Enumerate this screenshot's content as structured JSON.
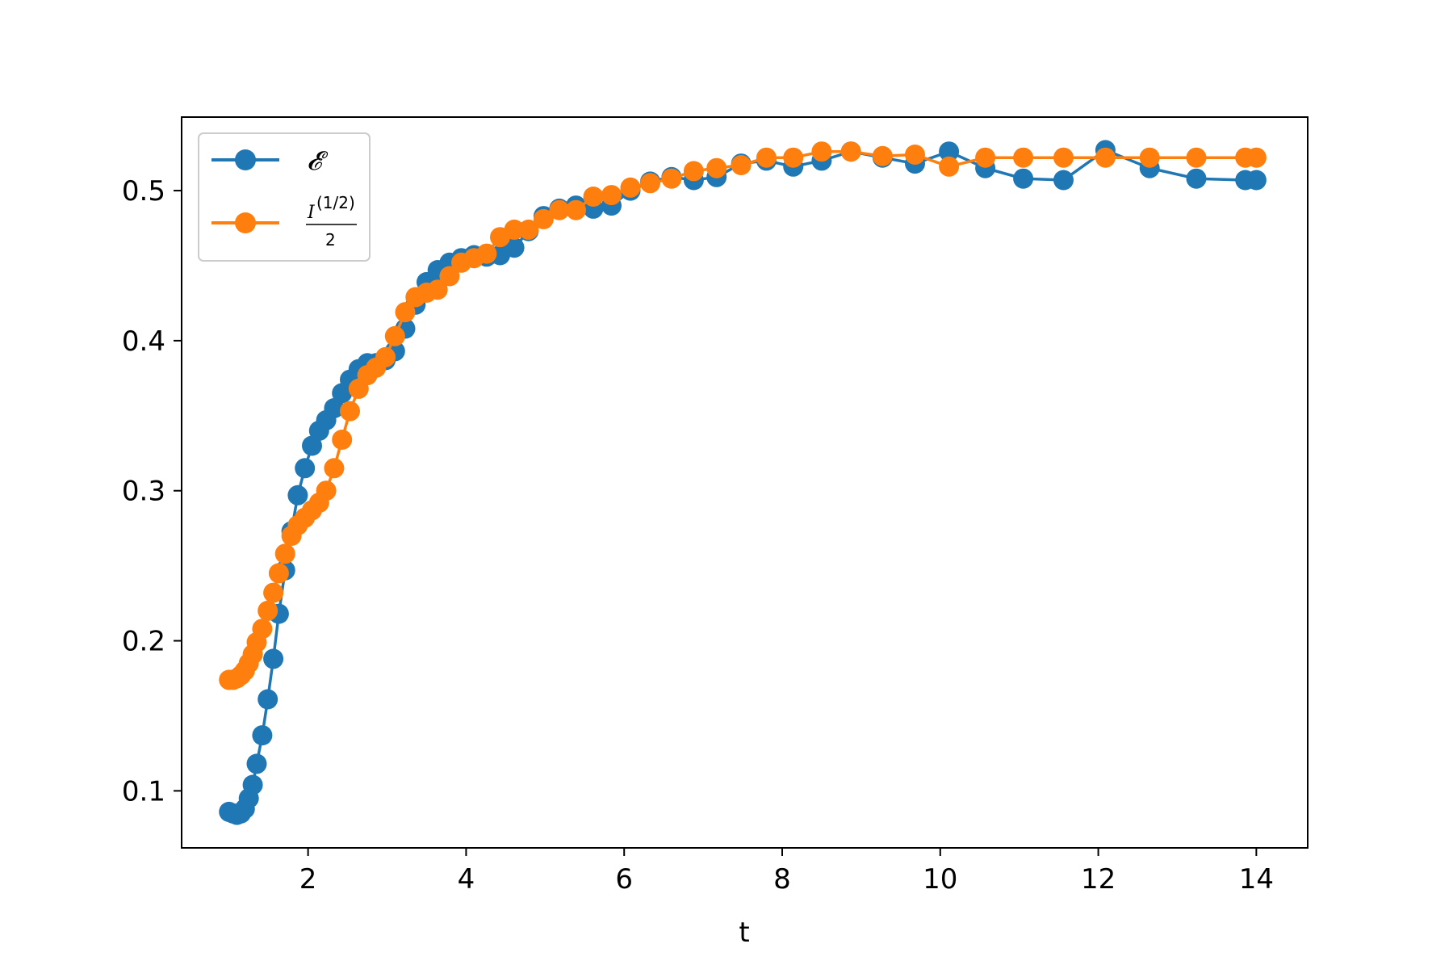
{
  "chart_data": {
    "type": "line",
    "title": "",
    "xlabel": "t",
    "ylabel": "",
    "xlim": [
      0.4,
      14.65
    ],
    "ylim": [
      0.062,
      0.549
    ],
    "xticks": [
      2,
      4,
      6,
      8,
      10,
      12,
      14
    ],
    "xtick_labels": [
      "2",
      "4",
      "6",
      "8",
      "10",
      "12",
      "14"
    ],
    "yticks": [
      0.1,
      0.2,
      0.3,
      0.4,
      0.5
    ],
    "ytick_labels": [
      "0.1",
      "0.2",
      "0.3",
      "0.4",
      "0.5"
    ],
    "grid": false,
    "legend_position": "top-left",
    "series": [
      {
        "name": "𝓔",
        "color": "#1f77b4",
        "marker": "circle",
        "x": [
          1.0,
          1.05,
          1.1,
          1.15,
          1.2,
          1.25,
          1.3,
          1.35,
          1.42,
          1.49,
          1.56,
          1.63,
          1.71,
          1.79,
          1.87,
          1.96,
          2.05,
          2.14,
          2.23,
          2.33,
          2.43,
          2.53,
          2.64,
          2.75,
          2.86,
          2.98,
          3.1,
          3.23,
          3.36,
          3.5,
          3.64,
          3.79,
          3.94,
          4.1,
          4.26,
          4.43,
          4.61,
          4.79,
          4.98,
          5.18,
          5.39,
          5.61,
          5.84,
          6.08,
          6.33,
          6.6,
          6.88,
          7.17,
          7.48,
          7.8,
          8.14,
          8.5,
          8.87,
          9.27,
          9.68,
          10.11,
          10.57,
          11.05,
          11.56,
          12.09,
          12.65,
          13.24,
          13.86,
          14.0
        ],
        "y": [
          0.086,
          0.085,
          0.084,
          0.085,
          0.088,
          0.095,
          0.104,
          0.118,
          0.137,
          0.161,
          0.188,
          0.218,
          0.247,
          0.273,
          0.297,
          0.315,
          0.33,
          0.34,
          0.347,
          0.355,
          0.365,
          0.374,
          0.381,
          0.385,
          0.385,
          0.387,
          0.393,
          0.408,
          0.424,
          0.439,
          0.447,
          0.452,
          0.455,
          0.457,
          0.456,
          0.457,
          0.462,
          0.473,
          0.483,
          0.488,
          0.49,
          0.488,
          0.49,
          0.5,
          0.506,
          0.509,
          0.507,
          0.509,
          0.518,
          0.52,
          0.516,
          0.52,
          0.526,
          0.522,
          0.518,
          0.526,
          0.515,
          0.508,
          0.507,
          0.527,
          0.515,
          0.508,
          0.507,
          0.507
        ]
      },
      {
        "name": "I^(1/2) / 2",
        "color": "#ff7f0e",
        "marker": "circle",
        "x": [
          1.0,
          1.05,
          1.1,
          1.15,
          1.2,
          1.25,
          1.3,
          1.35,
          1.42,
          1.49,
          1.56,
          1.63,
          1.71,
          1.79,
          1.87,
          1.96,
          2.05,
          2.14,
          2.23,
          2.33,
          2.43,
          2.53,
          2.64,
          2.75,
          2.86,
          2.98,
          3.1,
          3.23,
          3.36,
          3.5,
          3.64,
          3.79,
          3.94,
          4.1,
          4.26,
          4.43,
          4.61,
          4.79,
          4.98,
          5.18,
          5.39,
          5.61,
          5.84,
          6.08,
          6.33,
          6.6,
          6.88,
          7.17,
          7.48,
          7.8,
          8.14,
          8.5,
          8.87,
          9.27,
          9.68,
          10.11,
          10.57,
          11.05,
          11.56,
          12.09,
          12.65,
          13.24,
          13.86,
          14.0
        ],
        "y": [
          0.174,
          0.174,
          0.175,
          0.177,
          0.18,
          0.185,
          0.191,
          0.199,
          0.208,
          0.22,
          0.232,
          0.245,
          0.258,
          0.27,
          0.277,
          0.282,
          0.287,
          0.292,
          0.3,
          0.315,
          0.334,
          0.353,
          0.368,
          0.377,
          0.382,
          0.389,
          0.403,
          0.419,
          0.429,
          0.432,
          0.434,
          0.443,
          0.452,
          0.455,
          0.458,
          0.469,
          0.474,
          0.474,
          0.481,
          0.487,
          0.487,
          0.496,
          0.497,
          0.502,
          0.505,
          0.508,
          0.513,
          0.515,
          0.517,
          0.522,
          0.522,
          0.526,
          0.526,
          0.523,
          0.524,
          0.516,
          0.522,
          0.522,
          0.522,
          0.522,
          0.522,
          0.522,
          0.522,
          0.522
        ]
      }
    ]
  }
}
